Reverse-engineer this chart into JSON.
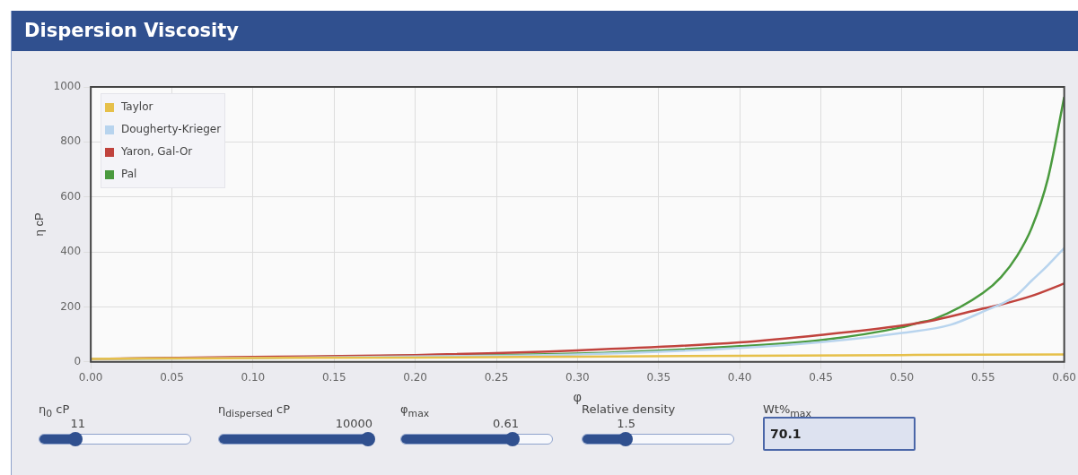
{
  "chart_data": {
    "type": "line",
    "title": "Dispersion Viscosity",
    "xlabel": "φ",
    "ylabel": "η cP",
    "xlim": [
      0,
      0.6
    ],
    "xticks": [
      {
        "value": 0,
        "label": "0.00"
      },
      {
        "value": 0.05,
        "label": "0.05"
      },
      {
        "value": 0.1,
        "label": "0.10"
      },
      {
        "value": 0.15,
        "label": "0.15"
      },
      {
        "value": 0.2,
        "label": "0.20"
      },
      {
        "value": 0.25,
        "label": "0.25"
      },
      {
        "value": 0.3,
        "label": "0.30"
      },
      {
        "value": 0.35,
        "label": "0.35"
      },
      {
        "value": 0.4,
        "label": "0.40"
      },
      {
        "value": 0.45,
        "label": "0.45"
      },
      {
        "value": 0.5,
        "label": "0.50"
      },
      {
        "value": 0.55,
        "label": "0.55"
      },
      {
        "value": 0.6,
        "label": "0.60"
      }
    ],
    "ylim": [
      0,
      1000
    ],
    "yticks": [
      0,
      200,
      400,
      600,
      800,
      1000
    ],
    "grid": true,
    "legend": "top left",
    "marker": "none",
    "line_style": "solid",
    "series": [
      {
        "name": "Taylor",
        "color": "#e6c04a",
        "x": [
          0,
          0.1,
          0.2,
          0.3,
          0.4,
          0.5,
          0.6
        ],
        "values": [
          11,
          14,
          16,
          19,
          22,
          25,
          27
        ]
      },
      {
        "name": "Dougherty-Krieger",
        "color": "#b8d4ee",
        "x": [
          0,
          0.1,
          0.2,
          0.3,
          0.4,
          0.45,
          0.5,
          0.53,
          0.55,
          0.57,
          0.58,
          0.59,
          0.6
        ],
        "values": [
          11,
          14,
          20,
          27,
          51,
          72,
          105,
          135,
          183,
          240,
          296,
          352,
          414
        ]
      },
      {
        "name": "Yaron, Gal-Or",
        "color": "#c0433d",
        "x": [
          0,
          0.1,
          0.2,
          0.3,
          0.4,
          0.45,
          0.5,
          0.52,
          0.55,
          0.56,
          0.58,
          0.6
        ],
        "values": [
          11,
          18,
          25,
          42,
          71,
          98,
          132,
          152,
          194,
          207,
          240,
          285
        ]
      },
      {
        "name": "Pal",
        "color": "#4a9a3e",
        "x": [
          0,
          0.1,
          0.2,
          0.3,
          0.4,
          0.45,
          0.5,
          0.51,
          0.52,
          0.55,
          0.561,
          0.571,
          0.58,
          0.59,
          0.6
        ],
        "values": [
          11,
          15,
          23,
          30,
          57,
          79,
          126,
          142,
          156,
          251,
          308,
          386,
          488,
          668,
          963
        ]
      }
    ],
    "annotations": [
      "η$_{0}$ cP",
      "11",
      "η$_{dispersed}$ cP",
      "10000",
      "φ$_{max}$",
      "0.61",
      "Relative density",
      "1.5",
      "Wt%$_{max}$",
      "70.1"
    ]
  }
}
